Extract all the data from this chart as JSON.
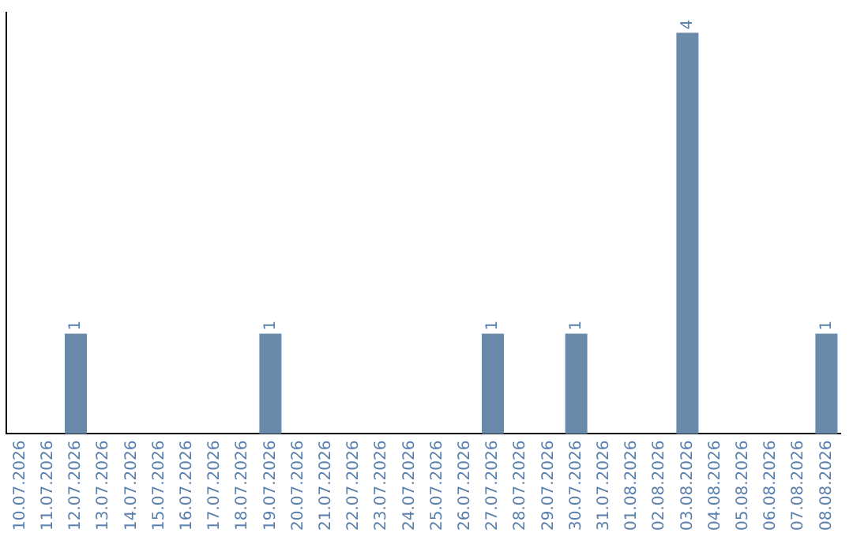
{
  "chart_data": {
    "type": "bar",
    "categories": [
      "10.07.2026",
      "11.07.2026",
      "12.07.2026",
      "13.07.2026",
      "14.07.2026",
      "15.07.2026",
      "16.07.2026",
      "17.07.2026",
      "18.07.2026",
      "19.07.2026",
      "20.07.2026",
      "21.07.2026",
      "22.07.2026",
      "23.07.2026",
      "24.07.2026",
      "25.07.2026",
      "26.07.2026",
      "27.07.2026",
      "28.07.2026",
      "29.07.2026",
      "30.07.2026",
      "31.07.2026",
      "01.08.2026",
      "02.08.2026",
      "03.08.2026",
      "04.08.2026",
      "05.08.2026",
      "06.08.2026",
      "07.08.2026",
      "08.08.2026"
    ],
    "values": [
      0,
      0,
      1,
      0,
      0,
      0,
      0,
      0,
      0,
      1,
      0,
      0,
      0,
      0,
      0,
      0,
      0,
      1,
      0,
      0,
      1,
      0,
      0,
      0,
      4,
      0,
      0,
      0,
      0,
      1
    ],
    "value_labels": [
      null,
      null,
      "1",
      null,
      null,
      null,
      null,
      null,
      null,
      "1",
      null,
      null,
      null,
      null,
      null,
      null,
      null,
      "1",
      null,
      null,
      "1",
      null,
      null,
      null,
      "4",
      null,
      null,
      null,
      null,
      "1"
    ],
    "color": "#6a8aab",
    "ylim": [
      0,
      4.2
    ],
    "tick_labels": "x",
    "grid": false,
    "legend": false
  }
}
